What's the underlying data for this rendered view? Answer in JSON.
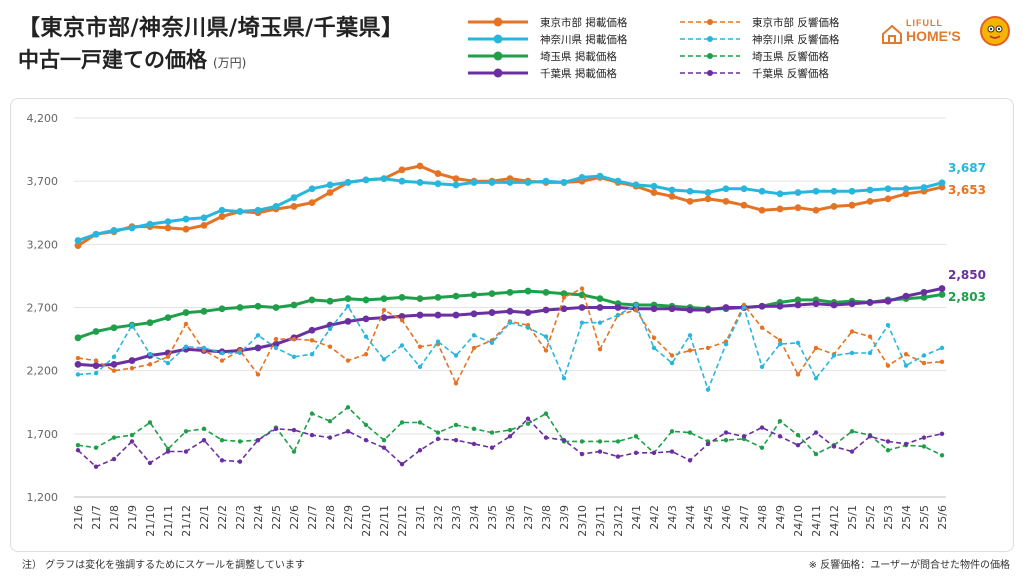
{
  "header": {
    "title_line1": "【東京市部/神奈川県/埼玉県/千葉県】",
    "title_line2": "中古一戸建ての価格",
    "unit": "(万円)"
  },
  "logo": {
    "line1": "LIFULL",
    "line2": "HOME'S",
    "icon": "home-mascot-icon"
  },
  "footer": {
    "note_left": "注） グラフは変化を強調するためにスケールを調整しています",
    "note_right": "※ 反響価格：ユーザーが問合せた物件の価格"
  },
  "chart_data": {
    "type": "line",
    "ylim": [
      1200,
      4200
    ],
    "yticks": [
      1200,
      1700,
      2200,
      2700,
      3200,
      3700,
      4200
    ],
    "ytick_labels": [
      "1,200",
      "1,700",
      "2,200",
      "2,700",
      "3,200",
      "3,700",
      "4,200"
    ],
    "grid": true,
    "legend_position": "top-right",
    "categories": [
      "21/6",
      "21/7",
      "21/8",
      "21/9",
      "21/10",
      "21/11",
      "21/12",
      "22/1",
      "22/2",
      "22/3",
      "22/4",
      "22/5",
      "22/6",
      "22/7",
      "22/8",
      "22/9",
      "22/10",
      "22/11",
      "22/12",
      "23/1",
      "23/2",
      "23/3",
      "23/4",
      "23/5",
      "23/6",
      "23/7",
      "23/8",
      "23/9",
      "23/10",
      "23/11",
      "23/12",
      "24/1",
      "24/2",
      "24/3",
      "24/4",
      "24/5",
      "24/6",
      "24/7",
      "24/8",
      "24/9",
      "24/10",
      "24/11",
      "24/12",
      "25/1",
      "25/2",
      "25/3",
      "25/4",
      "25/5",
      "25/6"
    ],
    "end_labels": [
      {
        "text": "3,687",
        "color": "#29b6de"
      },
      {
        "text": "3,653",
        "color": "#e57323"
      },
      {
        "text": "2,850",
        "color": "#6a2fa0"
      },
      {
        "text": "2,803",
        "color": "#1f9f49"
      }
    ],
    "series": [
      {
        "name": "東京市部 掲載価格",
        "color": "#e57323",
        "style": "solid",
        "values": [
          3190,
          3280,
          3300,
          3340,
          3340,
          3330,
          3320,
          3350,
          3420,
          3460,
          3450,
          3480,
          3500,
          3530,
          3610,
          3690,
          3710,
          3720,
          3790,
          3820,
          3760,
          3720,
          3700,
          3700,
          3720,
          3700,
          3690,
          3690,
          3700,
          3730,
          3690,
          3660,
          3610,
          3580,
          3540,
          3560,
          3540,
          3510,
          3470,
          3480,
          3490,
          3470,
          3500,
          3510,
          3540,
          3560,
          3600,
          3620,
          3653
        ]
      },
      {
        "name": "神奈川県 掲載価格",
        "color": "#29b6de",
        "style": "solid",
        "values": [
          3230,
          3280,
          3310,
          3330,
          3360,
          3380,
          3400,
          3410,
          3470,
          3460,
          3470,
          3500,
          3570,
          3640,
          3670,
          3690,
          3710,
          3720,
          3700,
          3690,
          3680,
          3670,
          3690,
          3690,
          3690,
          3690,
          3700,
          3690,
          3730,
          3740,
          3700,
          3670,
          3660,
          3630,
          3620,
          3610,
          3640,
          3640,
          3620,
          3600,
          3610,
          3620,
          3620,
          3620,
          3630,
          3640,
          3640,
          3650,
          3687
        ]
      },
      {
        "name": "埼玉県 掲載価格",
        "color": "#1f9f49",
        "style": "solid",
        "values": [
          2460,
          2510,
          2540,
          2560,
          2580,
          2620,
          2660,
          2670,
          2690,
          2700,
          2710,
          2700,
          2720,
          2760,
          2750,
          2770,
          2760,
          2770,
          2780,
          2770,
          2780,
          2790,
          2800,
          2810,
          2820,
          2830,
          2820,
          2810,
          2800,
          2770,
          2730,
          2720,
          2720,
          2710,
          2700,
          2690,
          2690,
          2700,
          2710,
          2740,
          2760,
          2760,
          2740,
          2750,
          2740,
          2760,
          2770,
          2780,
          2803
        ]
      },
      {
        "name": "千葉県 掲載価格",
        "color": "#6a2fa0",
        "style": "solid",
        "values": [
          2250,
          2240,
          2250,
          2280,
          2320,
          2340,
          2370,
          2360,
          2350,
          2360,
          2380,
          2410,
          2460,
          2520,
          2560,
          2590,
          2610,
          2620,
          2630,
          2640,
          2640,
          2640,
          2650,
          2660,
          2670,
          2660,
          2680,
          2690,
          2700,
          2700,
          2700,
          2690,
          2690,
          2690,
          2680,
          2680,
          2700,
          2700,
          2710,
          2710,
          2720,
          2730,
          2720,
          2730,
          2740,
          2750,
          2790,
          2820,
          2850
        ]
      },
      {
        "name": "東京市部 反響価格",
        "color": "#e57323",
        "style": "dashed",
        "values": [
          2300,
          2280,
          2200,
          2220,
          2250,
          2310,
          2570,
          2360,
          2280,
          2360,
          2170,
          2450,
          2450,
          2440,
          2390,
          2280,
          2330,
          2680,
          2600,
          2390,
          2410,
          2100,
          2380,
          2440,
          2590,
          2560,
          2360,
          2780,
          2850,
          2370,
          2640,
          2680,
          2460,
          2320,
          2360,
          2380,
          2430,
          2720,
          2540,
          2440,
          2170,
          2380,
          2330,
          2510,
          2470,
          2240,
          2330,
          2260,
          2270
        ]
      },
      {
        "name": "神奈川県 反響価格",
        "color": "#29b6de",
        "style": "dashed",
        "values": [
          2170,
          2180,
          2310,
          2560,
          2330,
          2260,
          2390,
          2380,
          2340,
          2340,
          2480,
          2380,
          2310,
          2330,
          2530,
          2710,
          2470,
          2290,
          2400,
          2230,
          2430,
          2320,
          2480,
          2420,
          2580,
          2540,
          2470,
          2140,
          2580,
          2580,
          2640,
          2720,
          2380,
          2260,
          2480,
          2050,
          2410,
          2700,
          2230,
          2410,
          2420,
          2140,
          2320,
          2340,
          2340,
          2560,
          2240,
          2320,
          2380
        ]
      },
      {
        "name": "埼玉県 反響価格",
        "color": "#1f9f49",
        "style": "dashed",
        "values": [
          1610,
          1590,
          1670,
          1690,
          1790,
          1580,
          1720,
          1740,
          1650,
          1640,
          1650,
          1750,
          1560,
          1860,
          1800,
          1910,
          1770,
          1650,
          1790,
          1790,
          1710,
          1770,
          1740,
          1710,
          1730,
          1780,
          1860,
          1640,
          1640,
          1640,
          1640,
          1680,
          1550,
          1720,
          1710,
          1640,
          1650,
          1660,
          1590,
          1800,
          1690,
          1540,
          1610,
          1720,
          1690,
          1570,
          1610,
          1600,
          1530
        ]
      },
      {
        "name": "千葉県 反響価格",
        "color": "#6a2fa0",
        "style": "dashed",
        "values": [
          1570,
          1440,
          1500,
          1640,
          1470,
          1560,
          1560,
          1650,
          1490,
          1480,
          1650,
          1740,
          1730,
          1690,
          1670,
          1720,
          1650,
          1590,
          1460,
          1570,
          1660,
          1650,
          1620,
          1590,
          1680,
          1820,
          1670,
          1650,
          1540,
          1560,
          1520,
          1550,
          1550,
          1560,
          1490,
          1620,
          1710,
          1680,
          1750,
          1680,
          1610,
          1710,
          1600,
          1560,
          1680,
          1640,
          1620,
          1670,
          1700
        ]
      }
    ]
  }
}
